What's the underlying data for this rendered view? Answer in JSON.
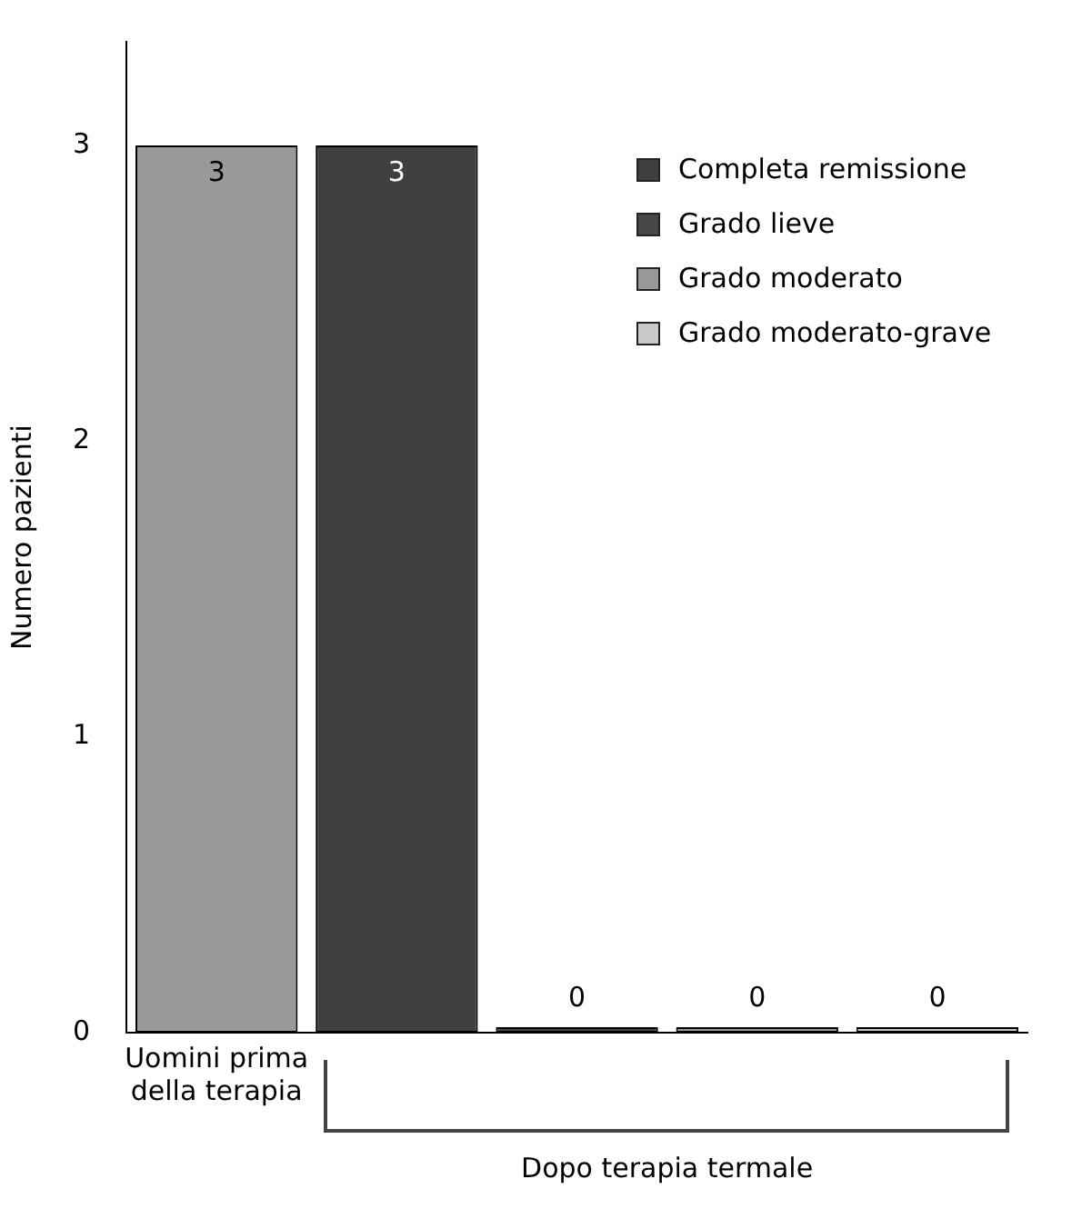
{
  "chart_data": {
    "type": "bar",
    "ylabel": "Numero pazienti",
    "categories": [
      "Uomini prima della terapia",
      null,
      null,
      null,
      null
    ],
    "series": [
      {
        "name": "Completa remissione",
        "color": "#404040",
        "values": [
          null,
          3,
          null,
          null,
          null
        ]
      },
      {
        "name": "Grado lieve",
        "color": "#474747",
        "values": [
          null,
          null,
          0,
          null,
          null
        ]
      },
      {
        "name": "Grado moderato",
        "color": "#999999",
        "values": [
          3,
          null,
          null,
          0,
          null
        ]
      },
      {
        "name": "Grado moderato-grave",
        "color": "#c8c8c8",
        "values": [
          null,
          null,
          null,
          null,
          0
        ]
      }
    ],
    "stacked": true,
    "ylim": [
      0,
      3.35
    ],
    "yticks": [
      0,
      1,
      2,
      3
    ],
    "grid": false,
    "legend": "top right",
    "data_labels": true,
    "annotations": [
      "Dopo terapia termale"
    ]
  }
}
